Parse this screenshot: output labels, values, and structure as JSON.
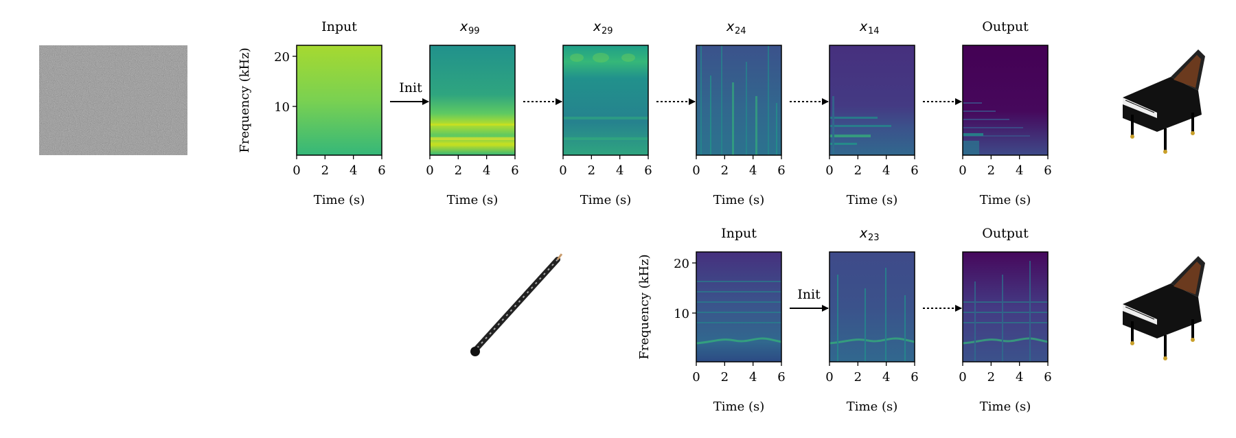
{
  "colors": {
    "viridis_dark": "#440154",
    "viridis_blue": "#31688e",
    "viridis_teal": "#21918c",
    "viridis_green": "#35b779",
    "viridis_yellow": "#fde725",
    "noise": "#8c8c8c"
  },
  "axes_text": {
    "ylabel": "Frequency (kHz)",
    "xlabel": "Time (s)",
    "yticks": [
      "20",
      "10"
    ],
    "xticks": [
      "0",
      "2",
      "4",
      "6"
    ]
  },
  "arrow_label": "Init",
  "top_row": {
    "source_icon": "noise-image",
    "target_icon": "grand-piano-icon",
    "panels": [
      {
        "id": "input",
        "title": "Input",
        "base": "x",
        "sub": ""
      },
      {
        "id": "x99",
        "title": "",
        "base": "x",
        "sub": "99"
      },
      {
        "id": "x29",
        "title": "",
        "base": "x",
        "sub": "29"
      },
      {
        "id": "x24",
        "title": "",
        "base": "x",
        "sub": "24"
      },
      {
        "id": "x14",
        "title": "",
        "base": "x",
        "sub": "14"
      },
      {
        "id": "output",
        "title": "Output",
        "base": "x",
        "sub": ""
      }
    ]
  },
  "bottom_row": {
    "source_icon": "oboe-icon",
    "target_icon": "grand-piano-icon",
    "panels": [
      {
        "id": "input",
        "title": "Input",
        "base": "x",
        "sub": ""
      },
      {
        "id": "x23",
        "title": "",
        "base": "x",
        "sub": "23"
      },
      {
        "id": "output",
        "title": "Output",
        "base": "x",
        "sub": ""
      }
    ]
  }
}
